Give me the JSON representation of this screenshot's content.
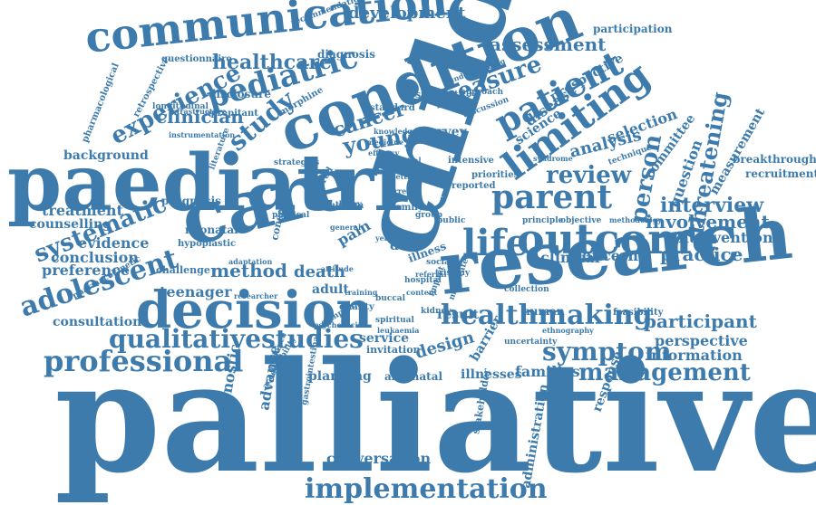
{
  "color": "#3d7bad",
  "words": [
    {
      "text": "palliative"
    },
    {
      "text": "child"
    },
    {
      "text": "research"
    },
    {
      "text": "paediatric"
    },
    {
      "text": "care"
    },
    {
      "text": "condition"
    },
    {
      "text": "decision"
    },
    {
      "text": "communication"
    },
    {
      "text": "outcome"
    },
    {
      "text": "limiting"
    },
    {
      "text": "patient"
    },
    {
      "text": "parent"
    },
    {
      "text": "life"
    },
    {
      "text": "healthmaking"
    },
    {
      "text": "implementation"
    },
    {
      "text": "professional"
    },
    {
      "text": "qualitativestudies"
    },
    {
      "text": "symptom"
    },
    {
      "text": "management"
    },
    {
      "text": "adolescent"
    },
    {
      "text": "systematic"
    },
    {
      "text": "pediatric"
    },
    {
      "text": "experience"
    },
    {
      "text": "study"
    },
    {
      "text": "young"
    },
    {
      "text": "review"
    },
    {
      "text": "cancer"
    },
    {
      "text": "measure"
    },
    {
      "text": "healthcare"
    },
    {
      "text": "threatening"
    },
    {
      "text": "person"
    },
    {
      "text": "interview"
    },
    {
      "text": "involvement"
    },
    {
      "text": "participant"
    },
    {
      "text": "practice"
    },
    {
      "text": "method"
    },
    {
      "text": "clinician"
    },
    {
      "text": "assessment"
    },
    {
      "text": "development"
    },
    {
      "text": "conversation"
    },
    {
      "text": "design"
    },
    {
      "text": "death"
    },
    {
      "text": "teenager"
    },
    {
      "text": "consultation"
    },
    {
      "text": "evidence"
    },
    {
      "text": "conclusion"
    },
    {
      "text": "preference"
    },
    {
      "text": "treatment"
    },
    {
      "text": "counselling"
    },
    {
      "text": "background"
    },
    {
      "text": "analysis"
    },
    {
      "text": "selection"
    },
    {
      "text": "question"
    },
    {
      "text": "measurement"
    },
    {
      "text": "committee"
    },
    {
      "text": "intervention"
    },
    {
      "text": "breakthrough"
    },
    {
      "text": "recruitment"
    },
    {
      "text": "perspective"
    },
    {
      "text": "information"
    },
    {
      "text": "families"
    },
    {
      "text": "illnesses"
    },
    {
      "text": "barrier"
    },
    {
      "text": "result"
    },
    {
      "text": "human"
    },
    {
      "text": "clinical"
    },
    {
      "text": "concern"
    },
    {
      "text": "advance"
    },
    {
      "text": "prognostic"
    },
    {
      "text": "planning"
    },
    {
      "text": "antenatal"
    },
    {
      "text": "service"
    },
    {
      "text": "invitation"
    },
    {
      "text": "administration"
    },
    {
      "text": "response"
    },
    {
      "text": "stakeholder"
    },
    {
      "text": "survey"
    },
    {
      "text": "disease"
    },
    {
      "text": "science"
    },
    {
      "text": "prospective"
    },
    {
      "text": "adult"
    },
    {
      "text": "data"
    },
    {
      "text": "illness"
    },
    {
      "text": "pain"
    },
    {
      "text": "neonatal"
    },
    {
      "text": "prognosis"
    },
    {
      "text": "challenge"
    },
    {
      "text": "hypoplastic"
    },
    {
      "text": "participation"
    },
    {
      "text": "diagnosis"
    },
    {
      "text": "disclosure"
    },
    {
      "text": "questionnaire"
    },
    {
      "text": "recommendation"
    },
    {
      "text": "retrospective"
    },
    {
      "text": "pharmacological"
    },
    {
      "text": "longitudinal"
    },
    {
      "text": "aprepitant"
    },
    {
      "text": "morphine"
    },
    {
      "text": "standard"
    },
    {
      "text": "support"
    },
    {
      "text": "approach"
    },
    {
      "text": "language"
    },
    {
      "text": "family"
    },
    {
      "text": "kingdom"
    },
    {
      "text": "physical"
    },
    {
      "text": "consensus"
    },
    {
      "text": "centred"
    },
    {
      "text": "intensive"
    },
    {
      "text": "reported"
    },
    {
      "text": "priorities"
    },
    {
      "text": "principle"
    },
    {
      "text": "objective"
    },
    {
      "text": "methodology"
    },
    {
      "text": "feasibility"
    },
    {
      "text": "quality"
    },
    {
      "text": "spiritual"
    },
    {
      "text": "leukaemia"
    },
    {
      "text": "hospital"
    },
    {
      "text": "social"
    },
    {
      "text": "trisomy"
    },
    {
      "text": "guidance"
    },
    {
      "text": "complex"
    },
    {
      "text": "psychosocial"
    },
    {
      "text": "gastrointestinal"
    },
    {
      "text": "acceptability"
    },
    {
      "text": "uncertainty"
    },
    {
      "text": "ethnography"
    },
    {
      "text": "collection"
    },
    {
      "text": "pharmacokinetic"
    },
    {
      "text": "group"
    },
    {
      "text": "public"
    },
    {
      "text": "impact"
    },
    {
      "text": "moderate"
    },
    {
      "text": "infrastructure"
    },
    {
      "text": "instrumentation"
    },
    {
      "text": "discussion"
    },
    {
      "text": "understanding"
    },
    {
      "text": "technique"
    },
    {
      "text": "literature"
    },
    {
      "text": "strategies"
    },
    {
      "text": "knowledge"
    },
    {
      "text": "syndrome"
    },
    {
      "text": "attitude"
    },
    {
      "text": "buccal"
    },
    {
      "text": "training"
    },
    {
      "text": "researcher"
    },
    {
      "text": "content"
    },
    {
      "text": "kidney"
    },
    {
      "text": "referral"
    },
    {
      "text": "theory"
    },
    {
      "text": "current"
    },
    {
      "text": "setting"
    },
    {
      "text": "general"
    },
    {
      "text": "potential"
    },
    {
      "text": "efficacy"
    },
    {
      "text": "medicine"
    },
    {
      "text": "adaptation"
    },
    {
      "text": "end"
    },
    {
      "text": "year"
    }
  ]
}
